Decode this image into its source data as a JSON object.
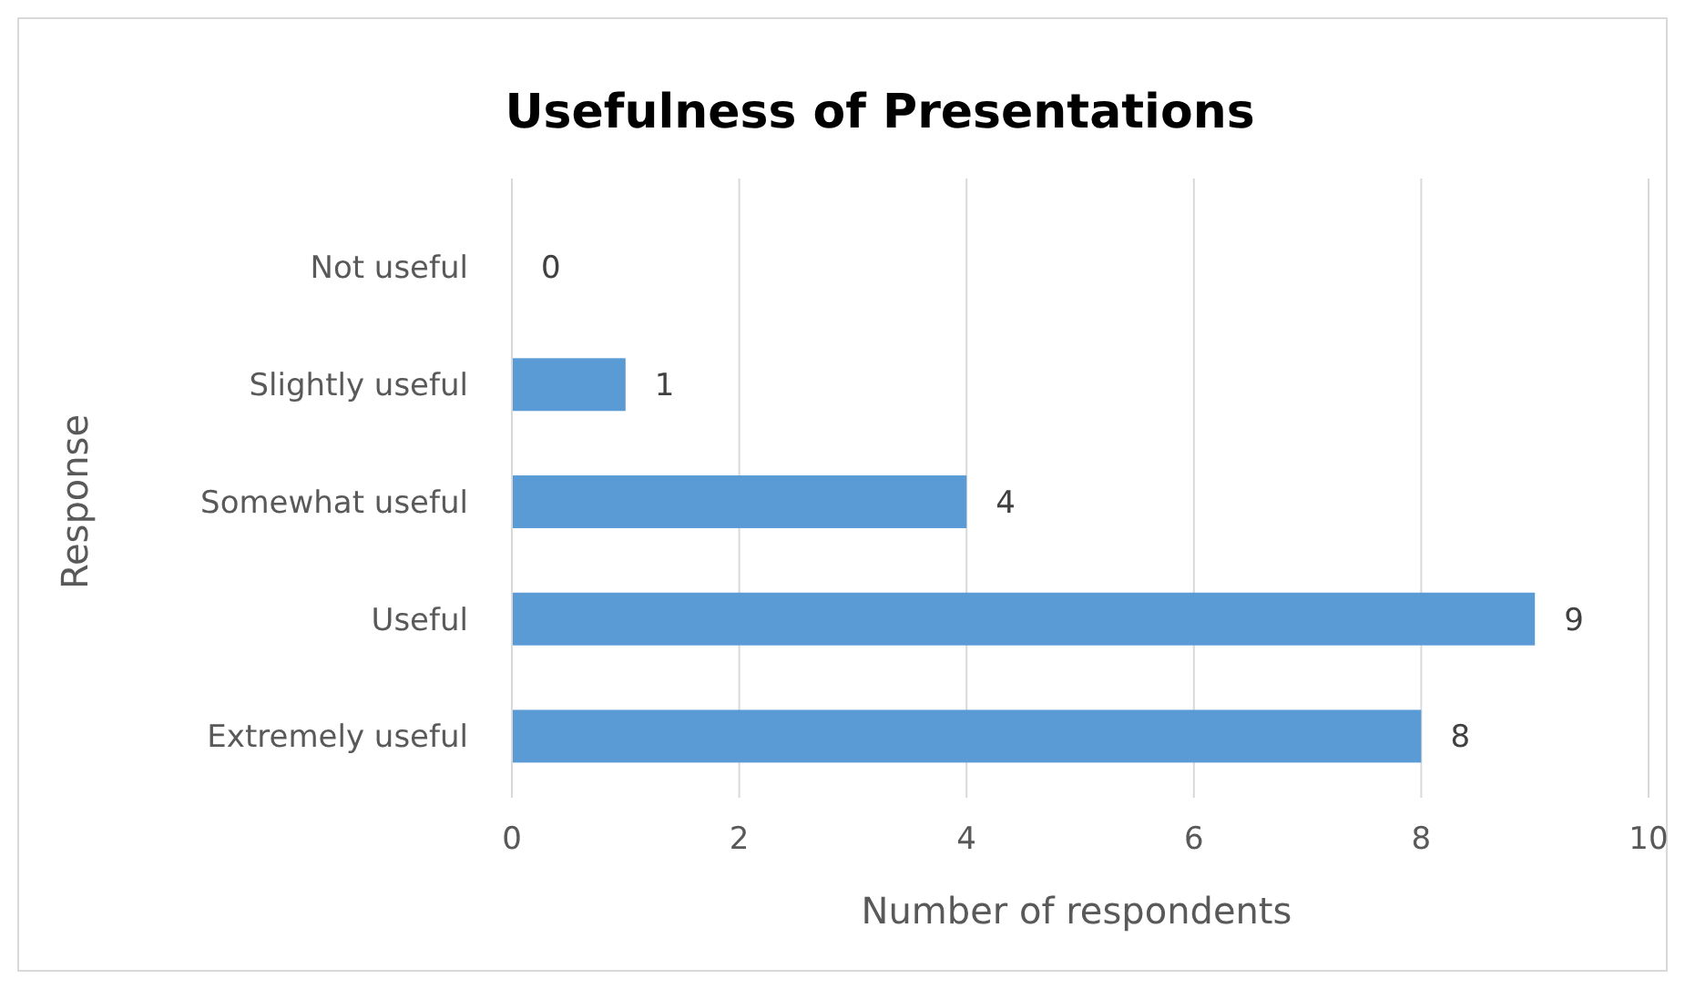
{
  "chart_data": {
    "type": "bar",
    "orientation": "horizontal",
    "title": "Usefulness of Presentations",
    "xlabel": "Number of respondents",
    "ylabel": "Response",
    "categories": [
      "Not useful",
      "Slightly useful",
      "Somewhat useful",
      "Useful",
      "Extremely useful"
    ],
    "values": [
      0,
      1,
      4,
      9,
      8
    ],
    "color": "#5b9bd5",
    "xlim": [
      0,
      10
    ],
    "xticks": [
      0,
      2,
      4,
      6,
      8,
      10
    ],
    "grid": "x",
    "data_labels": true
  }
}
